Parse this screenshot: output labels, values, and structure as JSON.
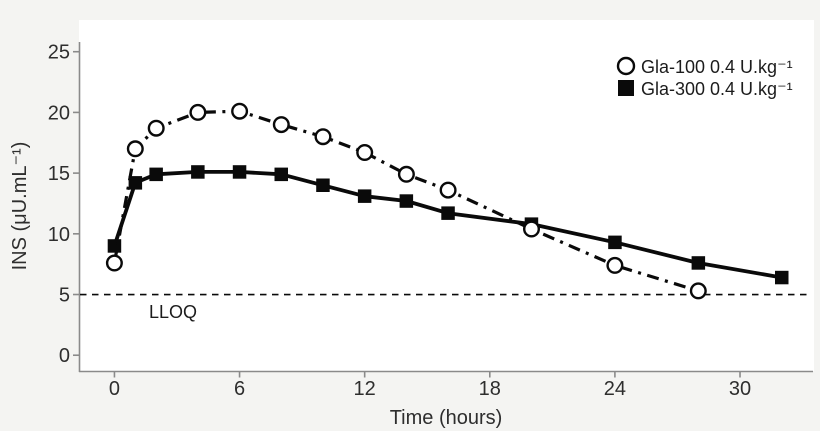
{
  "figure": {
    "background_color": "#f4f4f2",
    "panel_color": "#ffffff",
    "axis_color": "#8a8a8a",
    "data_color": "#0a0a0a"
  },
  "chart_data": {
    "type": "line",
    "title": "",
    "xlabel": "Time (hours)",
    "ylabel": "INS (μU.mL⁻¹)",
    "x_ticks": [
      0,
      6,
      12,
      18,
      24,
      30
    ],
    "y_ticks": [
      0,
      5,
      10,
      15,
      20,
      25
    ],
    "xlim": [
      -1.7,
      33.5
    ],
    "ylim": [
      -1.3,
      25.8
    ],
    "grid": false,
    "legend_position": "top-right",
    "reference_line": {
      "label": "LLOQ",
      "y": 5,
      "style": "dashed"
    },
    "series": [
      {
        "name": "Gla-100 0.4 U.kg⁻¹",
        "marker": "open-circle",
        "line_style": "dash-dot",
        "x": [
          0,
          1,
          2,
          4,
          6,
          8,
          10,
          12,
          14,
          16,
          20,
          24,
          28
        ],
        "values": [
          7.6,
          17.0,
          18.7,
          20.0,
          20.1,
          19.0,
          18.0,
          16.7,
          14.9,
          13.6,
          10.4,
          7.4,
          5.3
        ]
      },
      {
        "name": "Gla-300 0.4 U.kg⁻¹",
        "marker": "filled-square",
        "line_style": "solid",
        "x": [
          0,
          1,
          2,
          4,
          6,
          8,
          10,
          12,
          14,
          16,
          20,
          24,
          28,
          32
        ],
        "values": [
          9.0,
          14.2,
          14.9,
          15.1,
          15.1,
          14.9,
          14.0,
          13.1,
          12.7,
          11.7,
          10.8,
          9.3,
          7.6,
          6.4
        ]
      }
    ]
  }
}
